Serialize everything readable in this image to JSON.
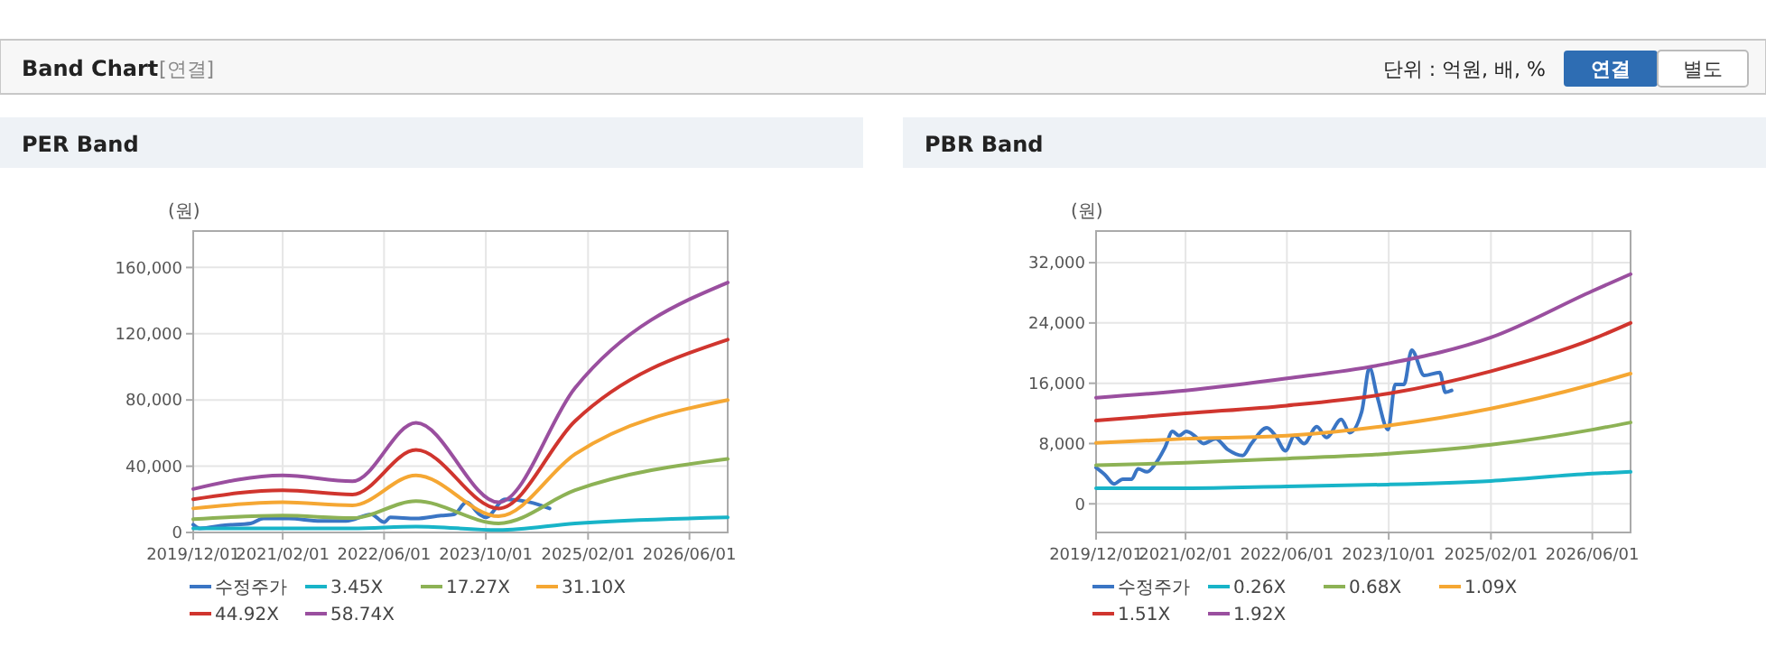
{
  "chart_data": [
    {
      "type": "other",
      "title": "Band Chart",
      "subtitle": "[연결]",
      "annotations": [
        "단위 : 억원, 배, %",
        "연결",
        "별도"
      ]
    },
    {
      "type": "line",
      "title": "PER Band",
      "ylabel": "(원)",
      "grid": true,
      "legend": "bottom",
      "marker": "none",
      "line_style": "solid",
      "xlim": [
        "2019-12-01",
        "2026-12-01"
      ],
      "ylim": [
        0,
        182000
      ],
      "xticks": [
        {
          "value": "2019-12-01",
          "label": "2019/12/01"
        },
        {
          "value": "2021-02-01",
          "label": "2021/02/01"
        },
        {
          "value": "2022-06-01",
          "label": "2022/06/01"
        },
        {
          "value": "2023-10-01",
          "label": "2023/10/01"
        },
        {
          "value": "2025-02-01",
          "label": "2025/02/01"
        },
        {
          "value": "2026-06-01",
          "label": "2026/06/01"
        }
      ],
      "yticks": [
        0,
        {
          "value": 40000,
          "label": "40,000"
        },
        {
          "value": 80000,
          "label": "80,000"
        },
        {
          "value": 120000,
          "label": "120,000"
        },
        {
          "value": 160000,
          "label": "160,000"
        }
      ],
      "x": [
        "2019-12-01",
        "2021-02-01",
        "2022-01-01",
        "2022-11-01",
        "2023-12-01",
        "2024-12-01",
        "2026-12-01"
      ],
      "series": [
        {
          "name": "수정주가",
          "color": "#3a75c4",
          "x": [
            "2019-12-01",
            "2020-01-01",
            "2020-05-01",
            "2020-09-01",
            "2020-11-01",
            "2021-03-01",
            "2021-08-01",
            "2021-12-01",
            "2022-04-01",
            "2022-06-01",
            "2022-07-01",
            "2022-11-01",
            "2023-03-01",
            "2023-05-01",
            "2023-07-01",
            "2023-09-01",
            "2023-10-01",
            "2024-01-01",
            "2024-05-01",
            "2024-08-01"
          ],
          "values": [
            4700,
            2500,
            4400,
            5500,
            8400,
            8400,
            6900,
            6900,
            10900,
            6200,
            9100,
            8400,
            10200,
            10900,
            18200,
            10900,
            9100,
            20000,
            18200,
            14500
          ]
        },
        {
          "name": "3.45X",
          "color": "#18b4c8",
          "values": [
            2500,
            2500,
            2500,
            3600,
            1500,
            5500,
            9100
          ]
        },
        {
          "name": "17.27X",
          "color": "#8db255",
          "values": [
            8000,
            10200,
            8700,
            18900,
            5500,
            25500,
            44400
          ]
        },
        {
          "name": "31.10X",
          "color": "#f5a733",
          "values": [
            14500,
            18200,
            16400,
            34500,
            9800,
            47300,
            80000
          ]
        },
        {
          "name": "44.92X",
          "color": "#d0352e",
          "values": [
            20000,
            25500,
            22900,
            49800,
            14500,
            67300,
            116400
          ]
        },
        {
          "name": "58.74X",
          "color": "#9a4f9f",
          "values": [
            26200,
            34500,
            30900,
            66200,
            18200,
            87300,
            150900
          ]
        }
      ]
    },
    {
      "type": "line",
      "title": "PBR Band",
      "ylabel": "(원)",
      "grid": true,
      "legend": "bottom",
      "marker": "none",
      "line_style": "solid",
      "xlim": [
        "2019-12-01",
        "2026-12-01"
      ],
      "ylim": [
        -3800,
        36200
      ],
      "xticks": [
        {
          "value": "2019-12-01",
          "label": "2019/12/01"
        },
        {
          "value": "2021-02-01",
          "label": "2021/02/01"
        },
        {
          "value": "2022-06-01",
          "label": "2022/06/01"
        },
        {
          "value": "2023-10-01",
          "label": "2023/10/01"
        },
        {
          "value": "2025-02-01",
          "label": "2025/02/01"
        },
        {
          "value": "2026-06-01",
          "label": "2026/06/01"
        }
      ],
      "yticks": [
        0,
        {
          "value": 8000,
          "label": "8,000"
        },
        {
          "value": 16000,
          "label": "16,000"
        },
        {
          "value": 24000,
          "label": "24,000"
        },
        {
          "value": 32000,
          "label": "32,000"
        }
      ],
      "x": [
        "2019-12-01",
        "2021-02-01",
        "2022-06-01",
        "2023-10-01",
        "2025-02-01",
        "2026-06-01",
        "2026-12-01"
      ],
      "series": [
        {
          "name": "수정주가",
          "color": "#3a75c4",
          "x": [
            "2019-12-01",
            "2020-01-13",
            "2020-02-25",
            "2020-04-07",
            "2020-05-19",
            "2020-06-19",
            "2020-08-01",
            "2020-09-13",
            "2020-10-25",
            "2020-12-01",
            "2021-01-01",
            "2021-02-04",
            "2021-03-16",
            "2021-04-28",
            "2021-06-25",
            "2021-08-22",
            "2021-11-01",
            "2021-12-13",
            "2022-02-25",
            "2022-04-07",
            "2022-05-25",
            "2022-07-07",
            "2022-08-22",
            "2022-10-22",
            "2022-12-07",
            "2023-02-16",
            "2023-03-28",
            "2023-05-25",
            "2023-07-01",
            "2023-08-07",
            "2023-09-28",
            "2023-11-01",
            "2023-12-13",
            "2024-01-19",
            "2024-03-19",
            "2024-06-01",
            "2024-06-28",
            "2024-07-28"
          ],
          "values": [
            4800,
            3840,
            2640,
            3280,
            3280,
            4640,
            4240,
            5440,
            7440,
            9600,
            9040,
            9600,
            9040,
            8000,
            8640,
            7200,
            6400,
            8000,
            10080,
            9040,
            7040,
            9040,
            8000,
            10240,
            8800,
            11200,
            9440,
            12240,
            18080,
            14240,
            9840,
            15840,
            15840,
            20400,
            17040,
            17440,
            14800,
            15040
          ]
        },
        {
          "name": "0.26X",
          "color": "#18b4c8",
          "values": [
            2080,
            2080,
            2320,
            2560,
            3040,
            4000,
            4240
          ]
        },
        {
          "name": "0.68X",
          "color": "#8db255",
          "values": [
            5120,
            5440,
            6000,
            6640,
            7840,
            9840,
            10800
          ]
        },
        {
          "name": "1.09X",
          "color": "#f5a733",
          "values": [
            8080,
            8640,
            9040,
            10400,
            12640,
            15840,
            17280
          ]
        },
        {
          "name": "1.51X",
          "color": "#d0352e",
          "values": [
            11040,
            12000,
            13040,
            14640,
            17600,
            21840,
            24000
          ]
        },
        {
          "name": "1.92X",
          "color": "#9a4f9f",
          "values": [
            14080,
            15040,
            16640,
            18640,
            22080,
            28240,
            30480
          ]
        }
      ]
    }
  ]
}
